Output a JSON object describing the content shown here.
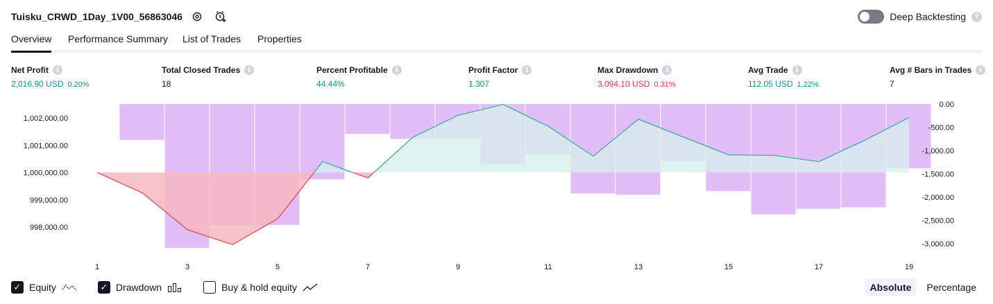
{
  "header": {
    "strategy_title": "Tuisku_CRWD_1Day_1V00_56863046",
    "deep_backtesting_label": "Deep Backtesting",
    "deep_backtesting_on": false,
    "help_glyph": "?"
  },
  "tabs": [
    {
      "label": "Overview",
      "active": true
    },
    {
      "label": "Performance Summary",
      "active": false
    },
    {
      "label": "List of Trades",
      "active": false
    },
    {
      "label": "Properties",
      "active": false
    }
  ],
  "stats": [
    {
      "label": "Net Profit",
      "value": "2,016.90 USD",
      "pct": "0.20%",
      "tone": "pos"
    },
    {
      "label": "Total Closed Trades",
      "value": "18",
      "pct": "",
      "tone": "plain"
    },
    {
      "label": "Percent Profitable",
      "value": "44.44%",
      "pct": "",
      "tone": "pos"
    },
    {
      "label": "Profit Factor",
      "value": "1.307",
      "pct": "",
      "tone": "pos"
    },
    {
      "label": "Max Drawdown",
      "value": "3,094.10 USD",
      "pct": "0.31%",
      "tone": "neg"
    },
    {
      "label": "Avg Trade",
      "value": "112.05 USD",
      "pct": "1.22%",
      "tone": "pos"
    },
    {
      "label": "Avg # Bars in Trades",
      "value": "7",
      "pct": "",
      "tone": "plain"
    }
  ],
  "chart_data": {
    "type": "line",
    "x_ticks": [
      "1",
      "3",
      "5",
      "7",
      "9",
      "11",
      "13",
      "15",
      "17",
      "19"
    ],
    "left_axis": {
      "ticks": [
        "1,002,000.00",
        "1,001,000.00",
        "1,000,000.00",
        "999,000.00",
        "998,000.00"
      ],
      "tick_values": [
        1002000,
        1001000,
        1000000,
        999000,
        998000
      ],
      "range": [
        997500,
        1002500
      ]
    },
    "right_axis": {
      "ticks": [
        "0.00",
        "-500.00",
        "-1,000.00",
        "-1,500.00",
        "-2,000.00",
        "-2,500.00",
        "-3,000.00"
      ],
      "tick_values": [
        0,
        -500,
        -1000,
        -1500,
        -2000,
        -2500,
        -3000
      ],
      "range": [
        -3150,
        0
      ]
    },
    "baseline_equity": 1000000,
    "series": [
      {
        "name": "Equity",
        "kind": "line",
        "x": [
          1,
          2,
          3,
          4,
          5,
          6,
          7,
          8,
          9,
          10,
          11,
          12,
          13,
          14,
          15,
          16,
          17,
          18,
          19
        ],
        "values": [
          1000000,
          999250,
          997900,
          997350,
          998300,
          1000400,
          999800,
          1001300,
          1002100,
          1002500,
          1001700,
          1000600,
          1001960,
          1001300,
          1000650,
          1000630,
          1000400,
          1001170,
          1002020
        ]
      },
      {
        "name": "Drawdown",
        "kind": "bar",
        "x": [
          1,
          2,
          3,
          4,
          5,
          6,
          7,
          8,
          9,
          10,
          11,
          12,
          13,
          14,
          15,
          16,
          17,
          18,
          19
        ],
        "values": [
          0,
          -770,
          -3090,
          -2600,
          -2600,
          -1620,
          -640,
          -750,
          -750,
          -1290,
          -1080,
          -1920,
          -1950,
          -1220,
          -1870,
          -2370,
          -2250,
          -2220,
          -1380
        ]
      }
    ],
    "colors": {
      "equity_up": "#22ab94",
      "equity_down": "#f23645",
      "drawdown_bar": "#ce93f5",
      "up_fill": "#d6f0ea",
      "down_fill": "#f7b9bf"
    }
  },
  "legend": {
    "items": [
      {
        "label": "Equity",
        "checked": true,
        "icon": "equity-line-icon"
      },
      {
        "label": "Drawdown",
        "checked": true,
        "icon": "drawdown-bars-icon"
      },
      {
        "label": "Buy & hold equity",
        "checked": false,
        "icon": "buyhold-line-icon"
      }
    ],
    "check_glyph": "✓"
  },
  "mode": {
    "absolute_label": "Absolute",
    "percentage_label": "Percentage",
    "active": "absolute"
  }
}
